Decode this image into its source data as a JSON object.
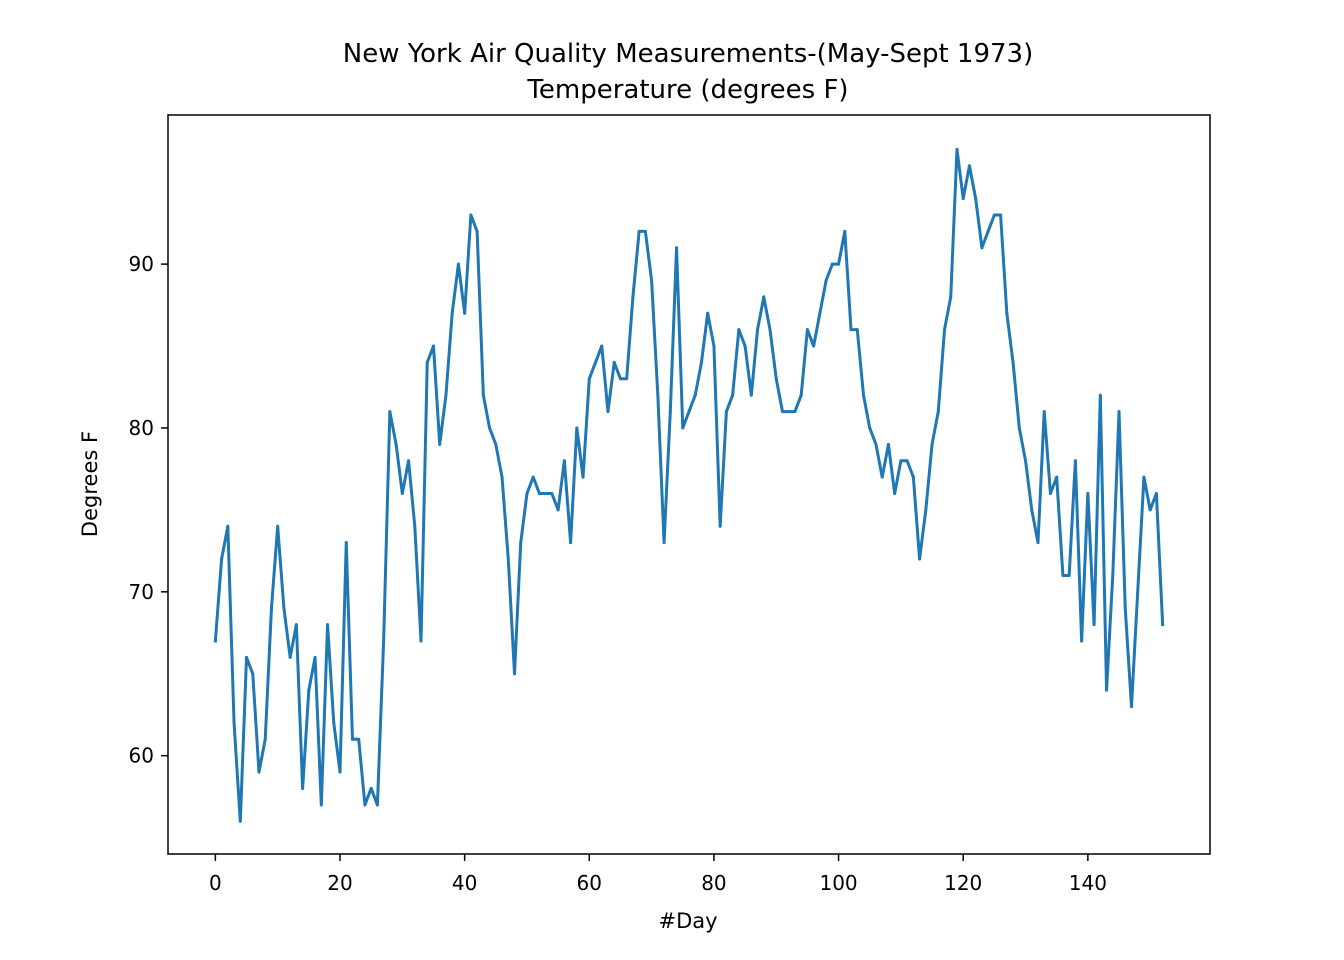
{
  "chart_data": {
    "type": "line",
    "title": "New York Air Quality Measurements-(May-Sept 1973)",
    "subtitle": "Temperature (degrees F)",
    "xlabel": "#Day",
    "ylabel": "Degrees F",
    "xlim": [
      -7.6,
      159.6
    ],
    "ylim": [
      54.0,
      99.1
    ],
    "xticks": [
      0,
      20,
      40,
      60,
      80,
      100,
      120,
      140
    ],
    "yticks": [
      60,
      70,
      80,
      90
    ],
    "grid": false,
    "legend": "none",
    "series": [
      {
        "color": "#1f77b4",
        "x": [
          0,
          1,
          2,
          3,
          4,
          5,
          6,
          7,
          8,
          9,
          10,
          11,
          12,
          13,
          14,
          15,
          16,
          17,
          18,
          19,
          20,
          21,
          22,
          23,
          24,
          25,
          26,
          27,
          28,
          29,
          30,
          31,
          32,
          33,
          34,
          35,
          36,
          37,
          38,
          39,
          40,
          41,
          42,
          43,
          44,
          45,
          46,
          47,
          48,
          49,
          50,
          51,
          52,
          53,
          54,
          55,
          56,
          57,
          58,
          59,
          60,
          61,
          62,
          63,
          64,
          65,
          66,
          67,
          68,
          69,
          70,
          71,
          72,
          73,
          74,
          75,
          76,
          77,
          78,
          79,
          80,
          81,
          82,
          83,
          84,
          85,
          86,
          87,
          88,
          89,
          90,
          91,
          92,
          93,
          94,
          95,
          96,
          97,
          98,
          99,
          100,
          101,
          102,
          103,
          104,
          105,
          106,
          107,
          108,
          109,
          110,
          111,
          112,
          113,
          114,
          115,
          116,
          117,
          118,
          119,
          120,
          121,
          122,
          123,
          124,
          125,
          126,
          127,
          128,
          129,
          130,
          131,
          132,
          133,
          134,
          135,
          136,
          137,
          138,
          139,
          140,
          141,
          142,
          143,
          144,
          145,
          146,
          147,
          148,
          149,
          150,
          151,
          152
        ],
        "y": [
          67,
          72,
          74,
          62,
          56,
          66,
          65,
          59,
          61,
          69,
          74,
          69,
          66,
          68,
          58,
          64,
          66,
          57,
          68,
          62,
          59,
          73,
          61,
          61,
          57,
          58,
          57,
          67,
          81,
          79,
          76,
          78,
          74,
          67,
          84,
          85,
          79,
          82,
          87,
          90,
          87,
          93,
          92,
          82,
          80,
          79,
          77,
          72,
          65,
          73,
          76,
          77,
          76,
          76,
          76,
          75,
          78,
          73,
          80,
          77,
          83,
          84,
          85,
          81,
          84,
          83,
          83,
          88,
          92,
          92,
          89,
          82,
          73,
          81,
          91,
          80,
          81,
          82,
          84,
          87,
          85,
          74,
          81,
          82,
          86,
          85,
          82,
          86,
          88,
          86,
          83,
          81,
          81,
          81,
          82,
          86,
          85,
          87,
          89,
          90,
          90,
          92,
          86,
          86,
          82,
          80,
          79,
          77,
          79,
          76,
          78,
          78,
          77,
          72,
          75,
          79,
          81,
          86,
          88,
          97,
          94,
          96,
          94,
          91,
          92,
          93,
          93,
          87,
          84,
          80,
          78,
          75,
          73,
          81,
          76,
          77,
          71,
          71,
          78,
          67,
          76,
          68,
          82,
          64,
          71,
          81,
          69,
          63,
          70,
          77,
          75,
          76,
          68
        ]
      }
    ]
  }
}
